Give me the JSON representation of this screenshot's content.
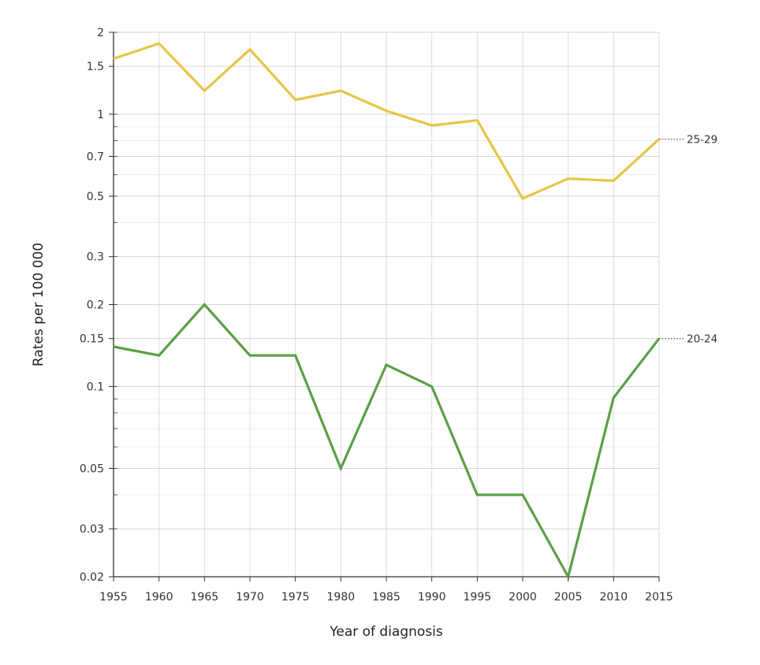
{
  "chart_data": {
    "type": "line",
    "title": "",
    "xlabel": "Year of diagnosis",
    "ylabel": "Rates per 100 000",
    "y_scale": "log",
    "xlim": [
      1955,
      2015
    ],
    "ylim": [
      0.02,
      2
    ],
    "x_ticks": [
      1955,
      1960,
      1965,
      1970,
      1975,
      1980,
      1985,
      1990,
      1995,
      2000,
      2005,
      2010,
      2015
    ],
    "y_ticks": [
      0.02,
      0.03,
      0.05,
      0.1,
      0.15,
      0.2,
      0.3,
      0.5,
      0.7,
      1,
      1.5,
      2
    ],
    "grid": true,
    "legend": "inline labels at right end of each line",
    "x": [
      1955,
      1960,
      1965,
      1970,
      1975,
      1980,
      1985,
      1990,
      1995,
      2000,
      2005,
      2010,
      2015
    ],
    "series": [
      {
        "name": "25-29",
        "color": "#e8c547",
        "values": [
          1.6,
          1.82,
          1.22,
          1.73,
          1.13,
          1.22,
          1.03,
          0.91,
          0.95,
          0.49,
          0.58,
          0.57,
          0.81
        ]
      },
      {
        "name": "20-24",
        "color": "#5aa048",
        "values": [
          0.14,
          0.13,
          0.2,
          0.13,
          0.13,
          0.05,
          0.12,
          0.1,
          0.04,
          0.04,
          0.02,
          0.091,
          0.15
        ]
      }
    ]
  }
}
